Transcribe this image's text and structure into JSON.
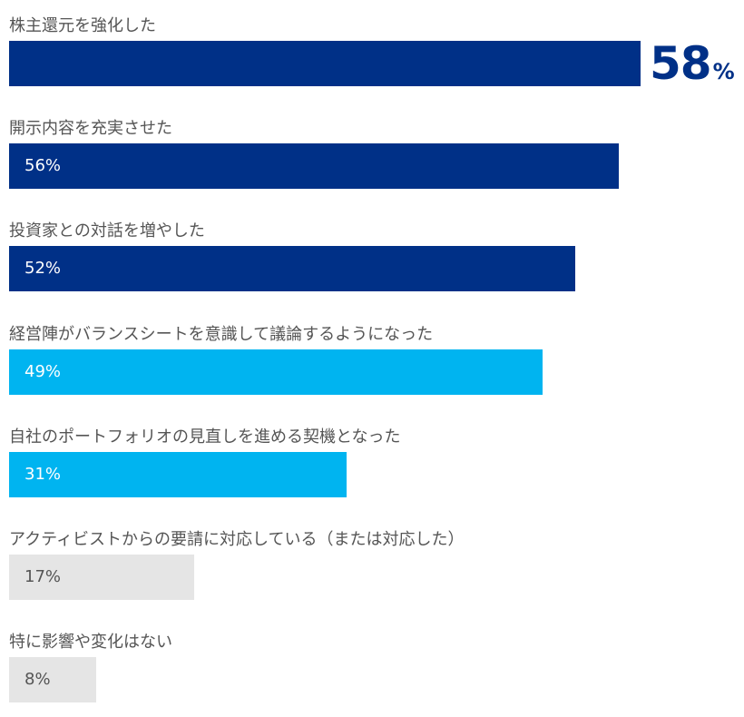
{
  "chart_data": {
    "type": "bar",
    "orientation": "horizontal",
    "xlim": [
      0,
      100
    ],
    "categories": [
      "株主還元を強化した",
      "開示内容を充実させた",
      "投資家との対話を増やした",
      "経営陣がバランスシートを意識して議論するようになった",
      "自社のポートフォリオの見直しを進める契機となった",
      "アクティビストからの要請に対応している（または対応した）",
      "特に影響や変化はない"
    ],
    "values": [
      58,
      56,
      52,
      49,
      31,
      17,
      8
    ],
    "value_labels": [
      "58",
      "56%",
      "52%",
      "49%",
      "31%",
      "17%",
      "8%"
    ],
    "percent_sign": "%",
    "colors": [
      "#003087",
      "#003087",
      "#003087",
      "#00b4f0",
      "#00b4f0",
      "#e5e5e5",
      "#e5e5e5"
    ],
    "label_colors": [
      "#003087",
      "#ffffff",
      "#ffffff",
      "#ffffff",
      "#ffffff",
      "#555555",
      "#555555"
    ],
    "highlight_index": 0
  }
}
